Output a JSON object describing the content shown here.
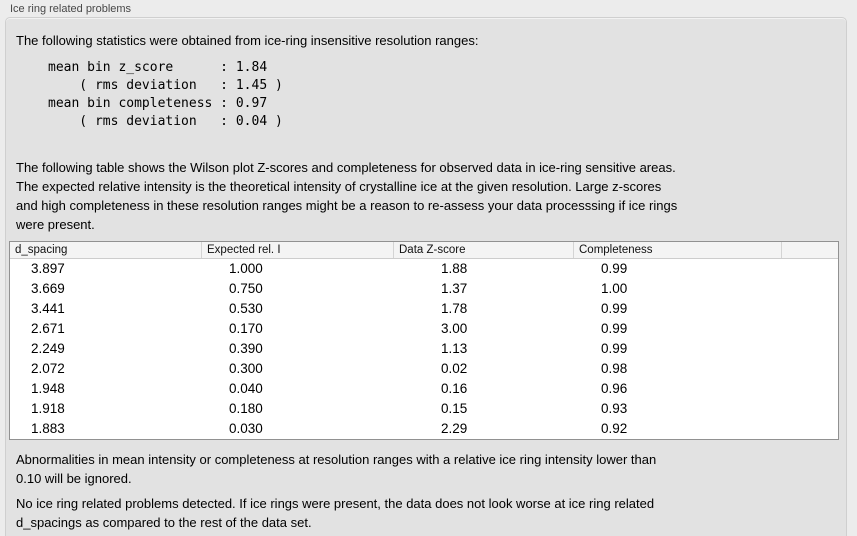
{
  "panel": {
    "title": "Ice ring related problems"
  },
  "intro": {
    "text": "The following statistics were obtained from ice-ring insensitive resolution ranges:",
    "stats_block": "mean bin z_score      : 1.84\n    ( rms deviation   : 1.45 )\nmean bin completeness : 0.97\n    ( rms deviation   : 0.04 )",
    "stats": {
      "mean_bin_z_score": "1.84",
      "z_score_rms_deviation": "1.45",
      "mean_bin_completeness": "0.97",
      "completeness_rms_deviation": "0.04"
    }
  },
  "description": {
    "text": "The following table shows the Wilson plot Z-scores and completeness for observed data in ice-ring sensitive areas.\nThe expected relative intensity is the theoretical intensity of crystalline ice at the given resolution. Large z-scores\nand high completeness in these resolution ranges might be a reason to re-assess your data processsing if ice rings\nwere present."
  },
  "table": {
    "columns": [
      "d_spacing",
      "Expected rel. I",
      "Data Z-score",
      "Completeness"
    ],
    "rows": [
      [
        "3.897",
        "1.000",
        "1.88",
        "0.99"
      ],
      [
        "3.669",
        "0.750",
        "1.37",
        "1.00"
      ],
      [
        "3.441",
        "0.530",
        "1.78",
        "0.99"
      ],
      [
        "2.671",
        "0.170",
        "3.00",
        "0.99"
      ],
      [
        "2.249",
        "0.390",
        "1.13",
        "0.99"
      ],
      [
        "2.072",
        "0.300",
        "0.02",
        "0.98"
      ],
      [
        "1.948",
        "0.040",
        "0.16",
        "0.96"
      ],
      [
        "1.918",
        "0.180",
        "0.15",
        "0.93"
      ],
      [
        "1.883",
        "0.030",
        "2.29",
        "0.92"
      ]
    ]
  },
  "footer": {
    "ignore_note": "Abnormalities in mean intensity or completeness at resolution ranges with a relative ice ring intensity lower than\n0.10 will be ignored.",
    "conclusion": "No ice ring related problems detected. If ice rings were present, the data does not look worse at ice ring related\nd_spacings as compared to the rest of the data set."
  },
  "colors": {
    "page_background": "#ececec",
    "groupbox_background": "#e2e2e2",
    "table_border": "#919191",
    "table_background": "#ffffff"
  }
}
